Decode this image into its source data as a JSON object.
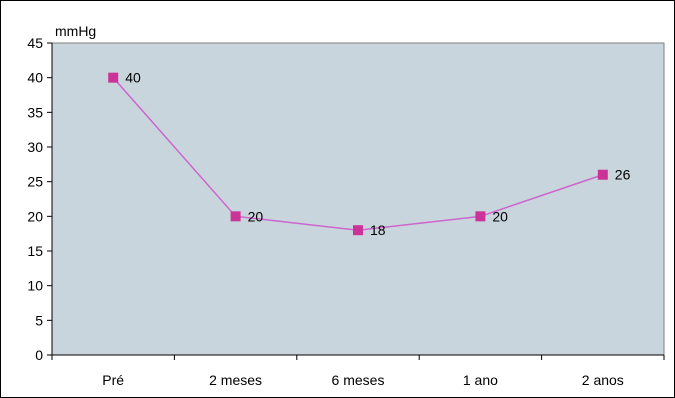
{
  "chart_data": {
    "type": "line",
    "title": "",
    "xlabel": "",
    "ylabel": "mmHg",
    "categories": [
      "Pré",
      "2 meses",
      "6 meses",
      "1 ano",
      "2 anos"
    ],
    "series": [
      {
        "values": [
          40,
          20,
          18,
          20,
          26
        ],
        "data_labels": [
          "40",
          "20",
          "18",
          "20",
          "26"
        ]
      }
    ],
    "ylim": [
      0,
      45
    ],
    "yticks": [
      "0",
      "5",
      "10",
      "15",
      "20",
      "25",
      "30",
      "35",
      "40",
      "45"
    ],
    "grid": false,
    "legend": "none",
    "colors": {
      "plot_area": "#c9d5dd",
      "line": "#cc66cc",
      "marker": "#cc3399",
      "axis": "#000000"
    }
  }
}
